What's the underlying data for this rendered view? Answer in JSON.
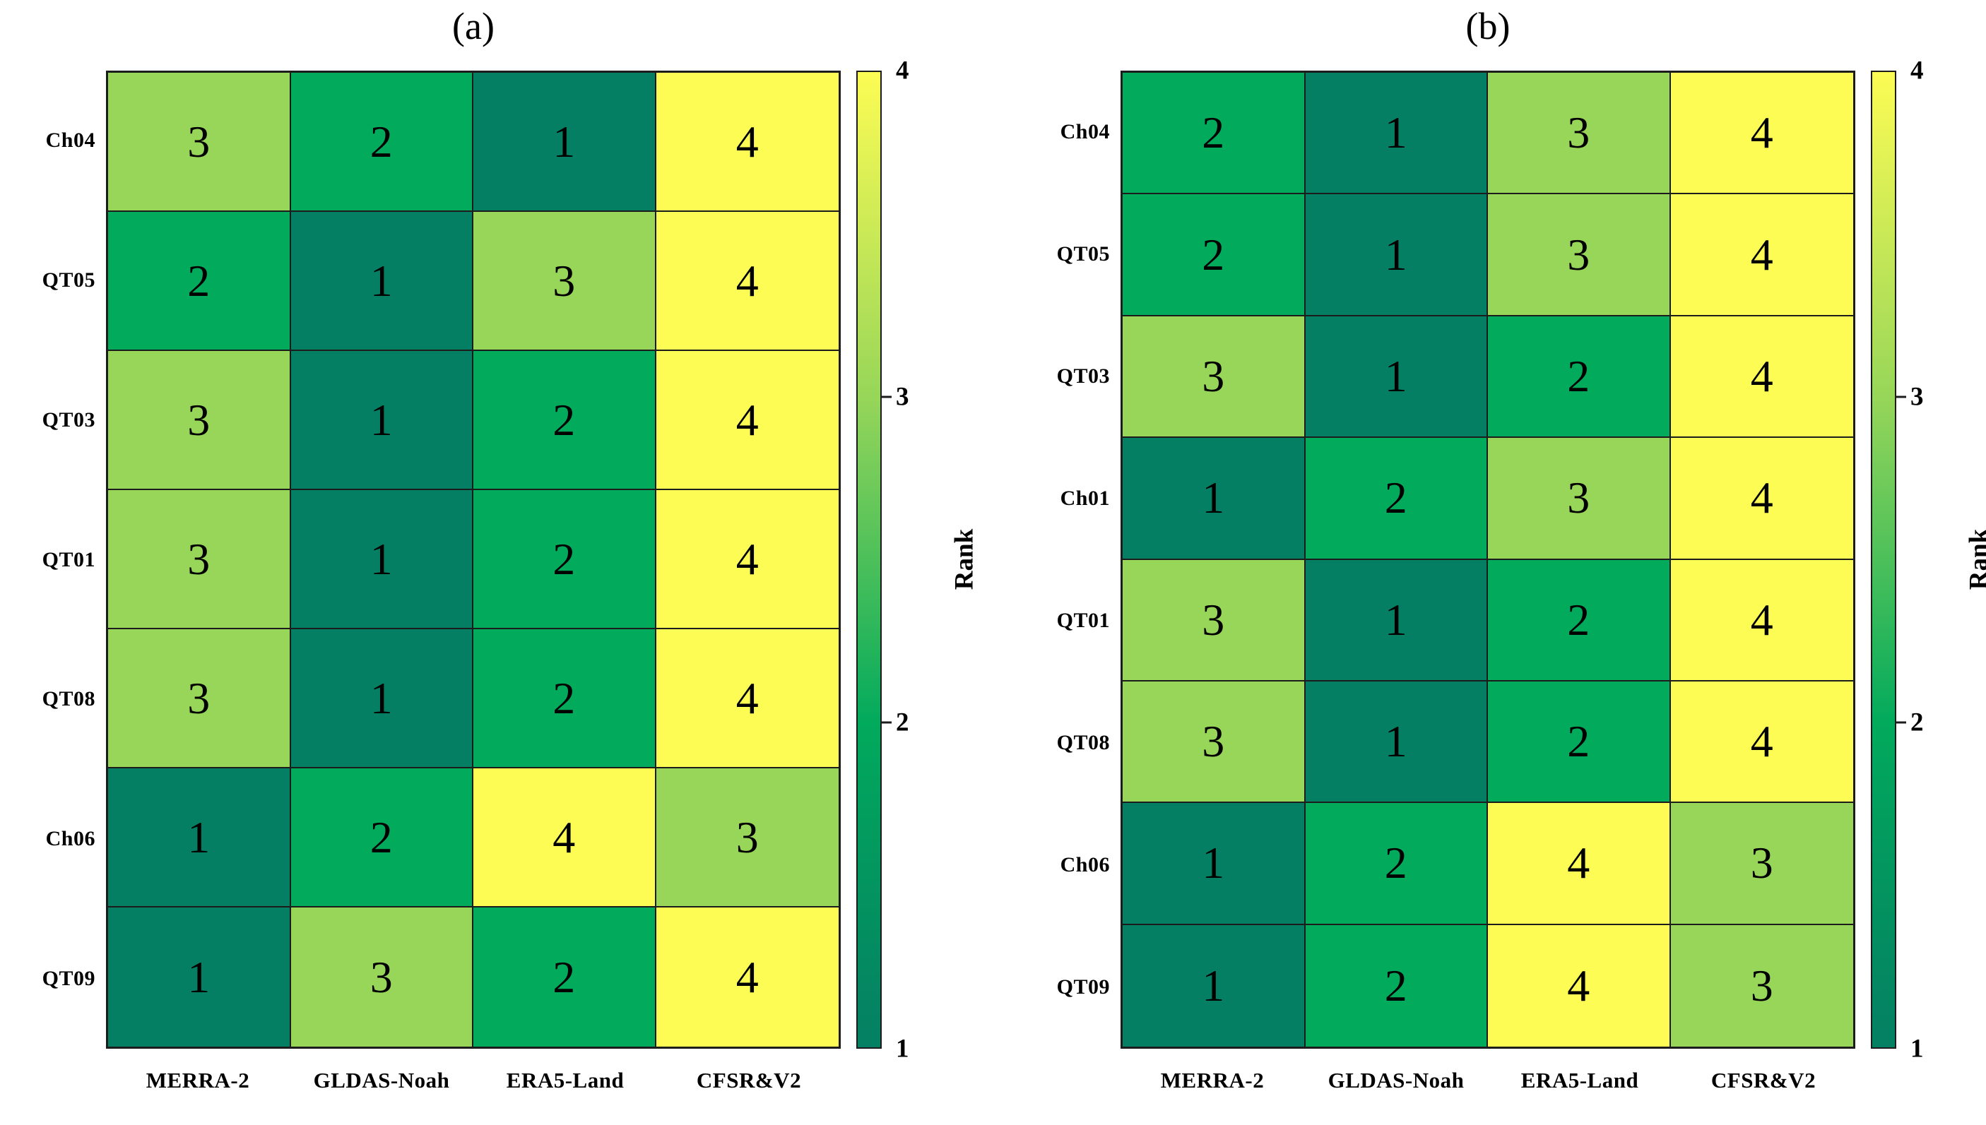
{
  "figure": {
    "description_background": "#ffffff",
    "grid_line_color": "#1c1c1c",
    "text_color": "#000000"
  },
  "colors": {
    "rank_1": "#047f63",
    "rank_2": "#02aa5c",
    "rank_3": "#97d659",
    "rank_4": "#fcfc54"
  },
  "chart_data": [
    {
      "type": "heatmap",
      "panel_label": "(a)",
      "rows": [
        "Ch04",
        "QT05",
        "QT03",
        "QT01",
        "QT08",
        "Ch06",
        "QT09"
      ],
      "columns": [
        "MERRA-2",
        "GLDAS-Noah",
        "ERA5-Land",
        "CFSR&V2"
      ],
      "values": [
        [
          3,
          2,
          1,
          4
        ],
        [
          2,
          1,
          3,
          4
        ],
        [
          3,
          1,
          2,
          4
        ],
        [
          3,
          1,
          2,
          4
        ],
        [
          3,
          1,
          2,
          4
        ],
        [
          1,
          2,
          4,
          3
        ],
        [
          1,
          3,
          2,
          4
        ]
      ],
      "value_min": 1,
      "value_max": 4,
      "colorbar": {
        "label": "Rank",
        "ticks": [
          4,
          3,
          2,
          1
        ]
      },
      "legend_position": "right",
      "grid": true
    },
    {
      "type": "heatmap",
      "panel_label": "(b)",
      "rows": [
        "Ch04",
        "QT05",
        "QT03",
        "Ch01",
        "QT01",
        "QT08",
        "Ch06",
        "QT09"
      ],
      "columns": [
        "MERRA-2",
        "GLDAS-Noah",
        "ERA5-Land",
        "CFSR&V2"
      ],
      "values": [
        [
          2,
          1,
          3,
          4
        ],
        [
          2,
          1,
          3,
          4
        ],
        [
          3,
          1,
          2,
          4
        ],
        [
          1,
          2,
          3,
          4
        ],
        [
          3,
          1,
          2,
          4
        ],
        [
          3,
          1,
          2,
          4
        ],
        [
          1,
          2,
          4,
          3
        ],
        [
          1,
          2,
          4,
          3
        ]
      ],
      "value_min": 1,
      "value_max": 4,
      "colorbar": {
        "label": "Rank",
        "ticks": [
          4,
          3,
          2,
          1
        ]
      },
      "legend_position": "right",
      "grid": true
    }
  ]
}
